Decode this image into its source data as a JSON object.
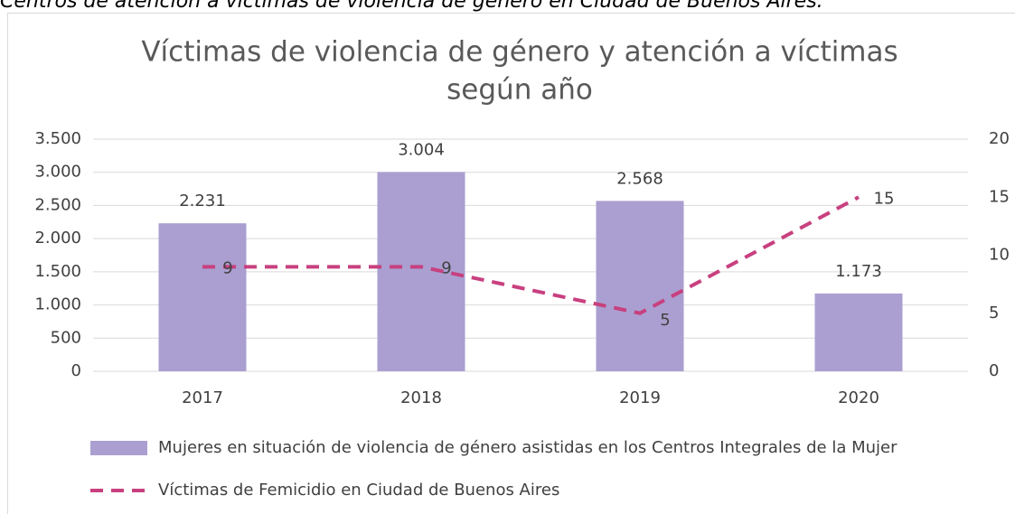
{
  "caption": "Centros de atención a víctimas de violencia de género en Ciudad de Buenos Aires.",
  "chart_data": {
    "type": "bar_line",
    "title": [
      "Víctimas de violencia de género y atención a víctimas",
      "según año"
    ],
    "categories": [
      "2017",
      "2018",
      "2019",
      "2020"
    ],
    "series": [
      {
        "name": "Mujeres en situación de violencia de género asistidas en los Centros Integrales de la Mujer",
        "type": "bar",
        "color": "#aa9fd0",
        "values": [
          2231,
          3004,
          2568,
          1173
        ],
        "value_labels": [
          "2.231",
          "3.004",
          "2.568",
          "1.173"
        ]
      },
      {
        "name": "Víctimas de Femicidio en Ciudad de Buenos Aires",
        "type": "line",
        "axis": "y2",
        "color": "#c8407f",
        "values": [
          9,
          9,
          5,
          15
        ]
      }
    ],
    "ylim": [
      0,
      3500
    ],
    "yticks": [
      0,
      500,
      {
        "value": 1000,
        "label": "1.000"
      },
      {
        "value": 1500,
        "label": "1.500"
      },
      {
        "value": 2000,
        "label": "2.000"
      },
      {
        "value": 2500,
        "label": "2.500"
      },
      {
        "value": 3000,
        "label": "3.000"
      },
      {
        "value": 3500,
        "label": "3.500"
      }
    ],
    "y2lim": [
      0,
      20
    ],
    "y2ticks": [
      0,
      5,
      10,
      15,
      20
    ],
    "grid": true,
    "legend": "bottom"
  }
}
